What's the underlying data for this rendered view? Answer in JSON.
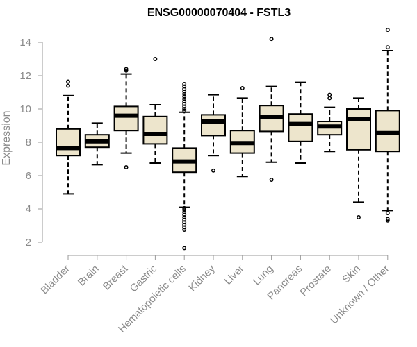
{
  "chart_data": {
    "type": "box",
    "title": "ENSG00000070404 - FSTL3",
    "xlabel": "",
    "ylabel": "Expression",
    "ylim": [
      1.6,
      14.9
    ],
    "yticks": [
      2,
      4,
      6,
      8,
      10,
      12,
      14
    ],
    "grid": false,
    "categories": [
      "Bladder",
      "Brain",
      "Breast",
      "Gastric",
      "Hematopoietic cells",
      "Kidney",
      "Liver",
      "Lung",
      "Pancreas",
      "Prostate",
      "Skin",
      "Unknown / Other"
    ],
    "series": [
      {
        "whisker_low": 4.9,
        "q1": 7.2,
        "median": 7.65,
        "q3": 8.8,
        "whisker_high": 10.8,
        "outliers": [
          11.4,
          11.65
        ]
      },
      {
        "whisker_low": 6.65,
        "q1": 7.7,
        "median": 8.05,
        "q3": 8.45,
        "whisker_high": 9.15,
        "outliers": []
      },
      {
        "whisker_low": 7.35,
        "q1": 8.7,
        "median": 9.6,
        "q3": 10.15,
        "whisker_high": 12.1,
        "outliers": [
          6.5,
          12.3,
          12.4
        ]
      },
      {
        "whisker_low": 6.75,
        "q1": 7.9,
        "median": 8.5,
        "q3": 9.55,
        "whisker_high": 10.25,
        "outliers": [
          13.0
        ]
      },
      {
        "whisker_low": 4.1,
        "q1": 6.2,
        "median": 6.85,
        "q3": 7.65,
        "whisker_high": 9.8,
        "outliers": [
          1.65,
          2.75,
          2.9,
          3.05,
          3.2,
          3.35,
          3.5,
          3.65,
          3.8,
          3.95,
          4.05,
          9.9,
          10.0,
          10.15,
          10.3,
          10.45,
          10.6,
          10.75,
          10.9,
          11.05,
          11.2,
          11.35,
          11.5
        ]
      },
      {
        "whisker_low": 7.2,
        "q1": 8.4,
        "median": 9.25,
        "q3": 9.65,
        "whisker_high": 10.85,
        "outliers": [
          6.3
        ]
      },
      {
        "whisker_low": 5.95,
        "q1": 7.35,
        "median": 7.95,
        "q3": 8.7,
        "whisker_high": 10.65,
        "outliers": [
          11.25
        ]
      },
      {
        "whisker_low": 6.8,
        "q1": 8.65,
        "median": 9.5,
        "q3": 10.2,
        "whisker_high": 11.35,
        "outliers": [
          5.75,
          14.2
        ]
      },
      {
        "whisker_low": 6.75,
        "q1": 8.05,
        "median": 9.1,
        "q3": 9.7,
        "whisker_high": 11.6,
        "outliers": []
      },
      {
        "whisker_low": 7.45,
        "q1": 8.45,
        "median": 8.95,
        "q3": 9.25,
        "whisker_high": 10.1,
        "outliers": [
          10.65,
          10.85
        ]
      },
      {
        "whisker_low": 4.4,
        "q1": 7.55,
        "median": 9.4,
        "q3": 10.0,
        "whisker_high": 10.65,
        "outliers": [
          3.5
        ]
      },
      {
        "whisker_low": 3.9,
        "q1": 7.45,
        "median": 8.55,
        "q3": 9.9,
        "whisker_high": 13.5,
        "outliers": [
          3.3,
          3.4,
          3.75,
          13.7,
          14.75
        ]
      }
    ],
    "colors": {
      "box_fill": "#ede5cc",
      "box_stroke": "#000000",
      "axis": "#9a9a9a",
      "labels": "#8a8a8a"
    }
  }
}
